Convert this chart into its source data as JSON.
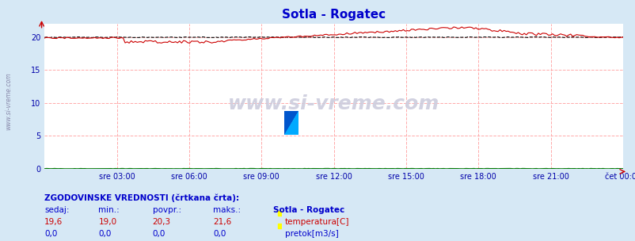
{
  "title": "Sotla - Rogatec",
  "title_color": "#0000cc",
  "bg_color": "#d6e8f5",
  "plot_bg_color": "#ffffff",
  "grid_color": "#ffaaaa",
  "x_tick_labels": [
    "sre 03:00",
    "sre 06:00",
    "sre 09:00",
    "sre 12:00",
    "sre 15:00",
    "sre 18:00",
    "sre 21:00",
    "čet 00:00"
  ],
  "x_tick_positions": [
    0.125,
    0.25,
    0.375,
    0.5,
    0.625,
    0.75,
    0.875,
    1.0
  ],
  "ylim": [
    0,
    22
  ],
  "y_ticks": [
    0,
    5,
    10,
    15,
    20
  ],
  "temp_color": "#cc0000",
  "flow_color": "#007700",
  "watermark": "www.si-vreme.com",
  "footer_text": "ZGODOVINSKE VREDNOSTI (črtkana črta):",
  "footer_color": "#0000cc",
  "col_headers": [
    "sedaj:",
    "min.:",
    "povpr.:",
    "maks.:"
  ],
  "temp_values": [
    "19,6",
    "19,0",
    "20,3",
    "21,6"
  ],
  "flow_values": [
    "0,0",
    "0,0",
    "0,0",
    "0,0"
  ],
  "legend_title": "Sotla - Rogatec",
  "legend_temp": "temperatura[C]",
  "legend_flow": "pretok[m3/s]",
  "side_label": "www.si-vreme.com",
  "num_points": 288
}
